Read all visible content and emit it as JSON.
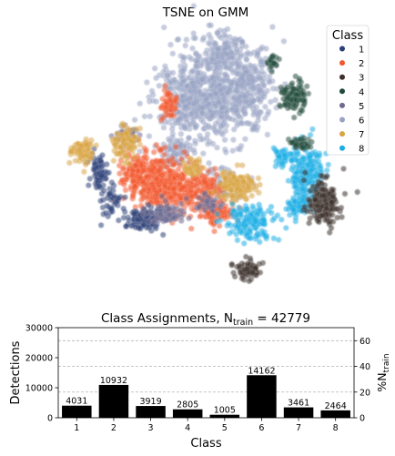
{
  "figure": {
    "top_title": "TSNE on GMM",
    "bottom_title_prefix": "Class Assignments, N",
    "bottom_title_sub": "train",
    "bottom_title_suffix": " = 42779"
  },
  "legend": {
    "title": "Class",
    "items": [
      {
        "label": "1",
        "color": "#2b3f78"
      },
      {
        "label": "2",
        "color": "#f2572c"
      },
      {
        "label": "3",
        "color": "#3d2f29"
      },
      {
        "label": "4",
        "color": "#1f4a3a"
      },
      {
        "label": "5",
        "color": "#6e6a8f"
      },
      {
        "label": "6",
        "color": "#97a3c2"
      },
      {
        "label": "7",
        "color": "#d9a441"
      },
      {
        "label": "8",
        "color": "#19aee6"
      }
    ]
  },
  "chart_data": [
    {
      "type": "scatter",
      "title": "TSNE on GMM",
      "xlabel": "",
      "ylabel": "",
      "axes_visible": false,
      "legend_title": "Class",
      "legend_position": "top-right",
      "series": [
        {
          "name": "1",
          "color": "#2b3f78"
        },
        {
          "name": "2",
          "color": "#f2572c"
        },
        {
          "name": "3",
          "color": "#3d2f29"
        },
        {
          "name": "4",
          "color": "#1f4a3a"
        },
        {
          "name": "5",
          "color": "#6e6a8f"
        },
        {
          "name": "6",
          "color": "#97a3c2"
        },
        {
          "name": "7",
          "color": "#d9a441"
        },
        {
          "name": "8",
          "color": "#19aee6"
        }
      ]
    },
    {
      "type": "bar",
      "title": "Class Assignments, Ntrain = 42779",
      "xlabel": "Class",
      "ylabel": "Detections",
      "y2label": "%Ntrain",
      "categories": [
        "1",
        "2",
        "3",
        "4",
        "5",
        "6",
        "7",
        "8"
      ],
      "values": [
        4031,
        10932,
        3919,
        2805,
        1005,
        14162,
        3461,
        2464
      ],
      "bar_color": "#000000",
      "ylim": [
        0,
        30000
      ],
      "yticks": [
        0,
        10000,
        20000,
        30000
      ],
      "y2lim": [
        0,
        70.13
      ],
      "y2ticks": [
        0,
        20,
        40,
        60
      ],
      "grid": "horizontal dashed on secondary axis"
    }
  ]
}
